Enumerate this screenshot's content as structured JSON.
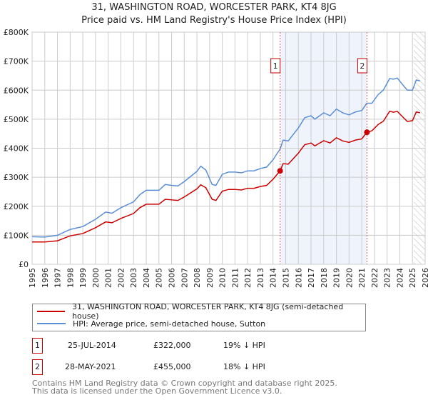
{
  "chart_data": {
    "type": "line",
    "title": "31, WASHINGTON ROAD, WORCESTER PARK, KT4 8JG",
    "subtitle": "Price paid vs. HM Land Registry's House Price Index (HPI)",
    "xlim": [
      1995,
      2026
    ],
    "ylim": [
      0,
      800000
    ],
    "x_ticks": [
      "1995",
      "1996",
      "1997",
      "1998",
      "1999",
      "2000",
      "2001",
      "2002",
      "2003",
      "2004",
      "2005",
      "2006",
      "2007",
      "2008",
      "2009",
      "2010",
      "2011",
      "2012",
      "2013",
      "2014",
      "2015",
      "2016",
      "2017",
      "2018",
      "2019",
      "2020",
      "2021",
      "2022",
      "2023",
      "2024",
      "2025",
      "2026"
    ],
    "y_ticks": [
      {
        "v": 0,
        "label": "£0"
      },
      {
        "v": 100000,
        "label": "£100K"
      },
      {
        "v": 200000,
        "label": "£200K"
      },
      {
        "v": 300000,
        "label": "£300K"
      },
      {
        "v": 400000,
        "label": "£400K"
      },
      {
        "v": 500000,
        "label": "£500K"
      },
      {
        "v": 600000,
        "label": "£600K"
      },
      {
        "v": 700000,
        "label": "£700K"
      },
      {
        "v": 800000,
        "label": "£800K"
      }
    ],
    "grid": true,
    "x": [
      1995,
      1996,
      1997,
      1998,
      1999,
      2000,
      2000.8,
      2001.3,
      2002,
      2003,
      2003.5,
      2004,
      2005,
      2005.5,
      2006,
      2006.5,
      2007,
      2008,
      2008.3,
      2008.7,
      2009.2,
      2009.5,
      2010,
      2010.5,
      2011,
      2011.5,
      2012,
      2012.5,
      2013,
      2013.5,
      2014,
      2014.56,
      2014.8,
      2015.2,
      2016,
      2016.5,
      2017,
      2017.3,
      2018,
      2018.5,
      2019,
      2019.5,
      2020,
      2020.5,
      2021,
      2021.4,
      2021.8,
      2022.3,
      2022.7,
      2023.2,
      2023.5,
      2023.8,
      2024.3,
      2024.6,
      2025,
      2025.3,
      2025.6
    ],
    "series": [
      {
        "name": "31, WASHINGTON ROAD, WORCESTER PARK, KT4 8JG (semi-detached house)",
        "color": "#cc0000",
        "values": [
          77,
          77,
          81,
          98,
          106,
          126,
          146,
          143,
          158,
          175,
          195,
          207,
          207,
          224,
          222,
          220,
          232,
          260,
          274,
          264,
          224,
          220,
          252,
          258,
          258,
          256,
          262,
          262,
          268,
          272,
          293,
          322,
          347,
          345,
          383,
          412,
          418,
          408,
          426,
          418,
          436,
          425,
          420,
          428,
          432,
          455,
          460,
          482,
          493,
          527,
          524,
          527,
          505,
          492,
          495,
          525,
          522
        ],
        "unit": "thousand GBP"
      },
      {
        "name": "HPI: Average price, semi-detached house, Sutton",
        "color": "#5b8ed6",
        "values": [
          95,
          94,
          100,
          120,
          130,
          155,
          180,
          176,
          195,
          215,
          240,
          255,
          255,
          275,
          272,
          270,
          285,
          320,
          338,
          325,
          275,
          272,
          310,
          318,
          318,
          315,
          322,
          322,
          330,
          335,
          360,
          397,
          428,
          425,
          470,
          505,
          512,
          500,
          522,
          512,
          535,
          522,
          515,
          525,
          530,
          555,
          555,
          585,
          600,
          640,
          638,
          642,
          615,
          600,
          600,
          635,
          632
        ],
        "unit": "thousand GBP"
      }
    ],
    "sales": [
      {
        "id": "1",
        "x": 2014.56,
        "price": 322000,
        "date": "25-JUL-2014",
        "price_label": "£322,000",
        "hpi_diff": "19% ↓ HPI"
      },
      {
        "id": "2",
        "x": 2021.41,
        "price": 455000,
        "date": "28-MAY-2021",
        "price_label": "£455,000",
        "hpi_diff": "18% ↓ HPI"
      }
    ],
    "shaded_range": [
      2014.56,
      2021.41
    ],
    "hatched_from": 2025.1
  },
  "footer": {
    "line1": "Contains HM Land Registry data © Crown copyright and database right 2025.",
    "line2": "This data is licensed under the Open Government Licence v3.0."
  }
}
